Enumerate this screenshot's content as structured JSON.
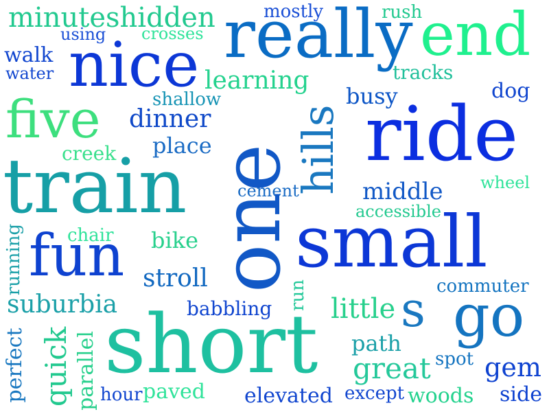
{
  "words": [
    {
      "text": "minuteshidden",
      "color": "#22c98f"
    },
    {
      "text": "mostly",
      "color": "#1a4fd6"
    },
    {
      "text": "rush",
      "color": "#22c98f"
    },
    {
      "text": "using",
      "color": "#1a4fd6"
    },
    {
      "text": "crosses",
      "color": "#2fe39a"
    },
    {
      "text": "really",
      "color": "#0a6cc4"
    },
    {
      "text": "end",
      "color": "#1ff08e"
    },
    {
      "text": "walk",
      "color": "#1146cf"
    },
    {
      "text": "water",
      "color": "#1146cf"
    },
    {
      "text": "nice",
      "color": "#0c37d6"
    },
    {
      "text": "tracks",
      "color": "#1fbf9a"
    },
    {
      "text": "learning",
      "color": "#24d28e"
    },
    {
      "text": "busy",
      "color": "#0c55c6"
    },
    {
      "text": "dog",
      "color": "#1146cf"
    },
    {
      "text": "shallow",
      "color": "#1593b4"
    },
    {
      "text": "five",
      "color": "#3ddf7e"
    },
    {
      "text": "dinner",
      "color": "#0e48c8"
    },
    {
      "text": "place",
      "color": "#1a6bc4"
    },
    {
      "text": "creek",
      "color": "#38e08c"
    },
    {
      "text": "ride",
      "color": "#0b2ee0"
    },
    {
      "text": "train",
      "color": "#169fa6"
    },
    {
      "text": "cement",
      "color": "#1a6bc4"
    },
    {
      "text": "middle",
      "color": "#1158c6"
    },
    {
      "text": "wheel",
      "color": "#2fe39a"
    },
    {
      "text": "accessible",
      "color": "#22c98f"
    },
    {
      "text": "chair",
      "color": "#2fe39a"
    },
    {
      "text": "bike",
      "color": "#27d08c"
    },
    {
      "text": "small",
      "color": "#0c37d6"
    },
    {
      "text": "fun",
      "color": "#0e42d0"
    },
    {
      "text": "stroll",
      "color": "#1168c0"
    },
    {
      "text": "commuter",
      "color": "#1474c0"
    },
    {
      "text": "suburbia",
      "color": "#1ba0a8"
    },
    {
      "text": "babbling",
      "color": "#1146cf"
    },
    {
      "text": "little",
      "color": "#27d08c"
    },
    {
      "text": "s",
      "color": "#1a78c0"
    },
    {
      "text": "go",
      "color": "#1474c0"
    },
    {
      "text": "short",
      "color": "#1ec0a0"
    },
    {
      "text": "path",
      "color": "#1ba0a8"
    },
    {
      "text": "great",
      "color": "#24c89a"
    },
    {
      "text": "spot",
      "color": "#1474c0"
    },
    {
      "text": "gem",
      "color": "#0e42d0"
    },
    {
      "text": "hour",
      "color": "#1146cf"
    },
    {
      "text": "paved",
      "color": "#2fe39a"
    },
    {
      "text": "elevated",
      "color": "#1146cf"
    },
    {
      "text": "except",
      "color": "#1146cf"
    },
    {
      "text": "woods",
      "color": "#24d28e"
    },
    {
      "text": "side",
      "color": "#0e42d0"
    },
    {
      "text": "one",
      "color": "#1158c6"
    },
    {
      "text": "hills",
      "color": "#1a78c0"
    },
    {
      "text": "running",
      "color": "#1ba0a8"
    },
    {
      "text": "run",
      "color": "#24c89a"
    },
    {
      "text": "perfect",
      "color": "#1a78c0"
    },
    {
      "text": "quick",
      "color": "#22c98f"
    },
    {
      "text": "parallel",
      "color": "#27d08c"
    }
  ]
}
